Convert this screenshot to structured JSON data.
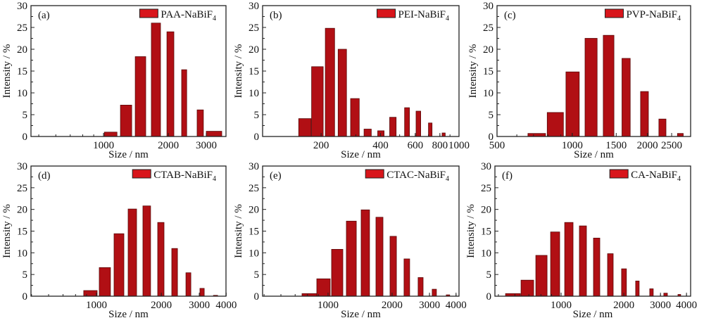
{
  "figure": {
    "bar_color": "#b10f14",
    "legend_color": "#d8151b"
  },
  "chart_data": [
    {
      "type": "bar",
      "panel": "(a)",
      "legend": "PAA-NaBiF",
      "legend_subscript": "4",
      "xlabel": "Size / nm",
      "ylabel": "Intensity / %",
      "xscale": "log",
      "xlim": [
        460,
        3705
      ],
      "ylim": [
        0,
        30
      ],
      "yticks": [
        0,
        5,
        10,
        15,
        20,
        25,
        30
      ],
      "xticks": [
        1000,
        2000,
        3000
      ],
      "legend_position": "top-right",
      "bars": [
        {
          "size": 1078,
          "lo": 1008,
          "hi": 1154,
          "intensity": 1.0
        },
        {
          "size": 1272,
          "lo": 1198,
          "hi": 1351,
          "intensity": 7.2
        },
        {
          "size": 1484,
          "lo": 1403,
          "hi": 1570,
          "intensity": 18.3
        },
        {
          "size": 1750,
          "lo": 1668,
          "hi": 1839,
          "intensity": 26.0
        },
        {
          "size": 2043,
          "lo": 1969,
          "hi": 2122,
          "intensity": 24.0
        },
        {
          "size": 2366,
          "lo": 2305,
          "hi": 2433,
          "intensity": 15.3
        },
        {
          "size": 2812,
          "lo": 2720,
          "hi": 2909,
          "intensity": 6.1
        },
        {
          "size": 3259,
          "lo": 3000,
          "hi": 3541,
          "intensity": 1.2
        }
      ]
    },
    {
      "type": "bar",
      "panel": "(b)",
      "legend": "PEI-NaBiF",
      "legend_subscript": "4",
      "xlabel": "Size / nm",
      "ylabel": "Intensity / %",
      "xscale": "log",
      "xlim": [
        101,
        1000
      ],
      "ylim": [
        0,
        30
      ],
      "yticks": [
        0,
        5,
        10,
        15,
        20,
        25,
        30
      ],
      "xticks": [
        200,
        400,
        600,
        800,
        1000
      ],
      "legend_position": "top-right",
      "bars": [
        {
          "size": 165,
          "lo": 154,
          "hi": 178,
          "intensity": 4.1
        },
        {
          "size": 192,
          "lo": 179,
          "hi": 205,
          "intensity": 16.0
        },
        {
          "size": 221,
          "lo": 210,
          "hi": 234,
          "intensity": 24.8
        },
        {
          "size": 256,
          "lo": 244,
          "hi": 269,
          "intensity": 20.0
        },
        {
          "size": 297,
          "lo": 282,
          "hi": 312,
          "intensity": 8.7
        },
        {
          "size": 345,
          "lo": 330,
          "hi": 359,
          "intensity": 1.7
        },
        {
          "size": 401,
          "lo": 387,
          "hi": 417,
          "intensity": 1.3
        },
        {
          "size": 462,
          "lo": 445,
          "hi": 480,
          "intensity": 4.4
        },
        {
          "size": 545,
          "lo": 530,
          "hi": 561,
          "intensity": 6.6
        },
        {
          "size": 624,
          "lo": 606,
          "hi": 640,
          "intensity": 5.8
        },
        {
          "size": 716,
          "lo": 700,
          "hi": 730,
          "intensity": 3.1
        },
        {
          "size": 840,
          "lo": 821,
          "hi": 851,
          "intensity": 0.8
        }
      ]
    },
    {
      "type": "bar",
      "panel": "(c)",
      "legend": "PVP-NaBiF",
      "legend_subscript": "4",
      "xlabel": "Size / nm",
      "ylabel": "Intensity / %",
      "xscale": "log",
      "xlim": [
        500,
        2978
      ],
      "ylim": [
        0,
        30
      ],
      "yticks": [
        0,
        5,
        10,
        15,
        20,
        25,
        30
      ],
      "xticks": [
        500,
        1000,
        1500,
        2000,
        2500
      ],
      "legend_position": "top-right",
      "bars": [
        {
          "size": 721,
          "lo": 665,
          "hi": 782,
          "intensity": 0.7
        },
        {
          "size": 854,
          "lo": 794,
          "hi": 922,
          "intensity": 5.5
        },
        {
          "size": 1004,
          "lo": 944,
          "hi": 1067,
          "intensity": 14.8
        },
        {
          "size": 1189,
          "lo": 1125,
          "hi": 1258,
          "intensity": 22.5
        },
        {
          "size": 1399,
          "lo": 1331,
          "hi": 1469,
          "intensity": 23.2
        },
        {
          "size": 1646,
          "lo": 1582,
          "hi": 1707,
          "intensity": 17.9
        },
        {
          "size": 1952,
          "lo": 1877,
          "hi": 2017,
          "intensity": 10.3
        },
        {
          "size": 2297,
          "lo": 2222,
          "hi": 2373,
          "intensity": 4.0
        },
        {
          "size": 2704,
          "lo": 2637,
          "hi": 2782,
          "intensity": 0.7
        }
      ]
    },
    {
      "type": "bar",
      "panel": "(d)",
      "legend": "CTAB-NaBiF",
      "legend_subscript": "4",
      "xlabel": "Size / nm",
      "ylabel": "Intensity / %",
      "xscale": "log",
      "xlim": [
        497,
        3990
      ],
      "ylim": [
        0,
        30
      ],
      "yticks": [
        0,
        5,
        10,
        15,
        20,
        25,
        30
      ],
      "xticks": [
        1000,
        2000,
        3000,
        4000
      ],
      "legend_position": "top-right",
      "bars": [
        {
          "size": 938,
          "lo": 873,
          "hi": 1008,
          "intensity": 1.3
        },
        {
          "size": 1094,
          "lo": 1031,
          "hi": 1162,
          "intensity": 6.6
        },
        {
          "size": 1272,
          "lo": 1207,
          "hi": 1341,
          "intensity": 14.4
        },
        {
          "size": 1468,
          "lo": 1403,
          "hi": 1536,
          "intensity": 20.1
        },
        {
          "size": 1713,
          "lo": 1643,
          "hi": 1784,
          "intensity": 20.8
        },
        {
          "size": 1990,
          "lo": 1924,
          "hi": 2059,
          "intensity": 17.0
        },
        {
          "size": 2305,
          "lo": 2237,
          "hi": 2377,
          "intensity": 11.0
        },
        {
          "size": 2670,
          "lo": 2601,
          "hi": 2741,
          "intensity": 5.4
        },
        {
          "size": 3093,
          "lo": 3022,
          "hi": 3163,
          "intensity": 1.8
        },
        {
          "size": 3568,
          "lo": 3490,
          "hi": 3648,
          "intensity": 0.2
        }
      ]
    },
    {
      "type": "bar",
      "panel": "(e)",
      "legend": "CTAC-NaBiF",
      "legend_subscript": "4",
      "xlabel": "Size / nm",
      "ylabel": "Intensity / %",
      "xscale": "log",
      "xlim": [
        492,
        4130
      ],
      "ylim": [
        0,
        30
      ],
      "yticks": [
        0,
        5,
        10,
        15,
        20,
        25,
        30
      ],
      "xticks": [
        1000,
        2000,
        3000,
        4000
      ],
      "legend_position": "top-right",
      "bars": [
        {
          "size": 817,
          "lo": 754,
          "hi": 885,
          "intensity": 0.6
        },
        {
          "size": 952,
          "lo": 885,
          "hi": 1023,
          "intensity": 4.0
        },
        {
          "size": 1104,
          "lo": 1039,
          "hi": 1174,
          "intensity": 10.8
        },
        {
          "size": 1286,
          "lo": 1219,
          "hi": 1357,
          "intensity": 17.3
        },
        {
          "size": 1498,
          "lo": 1431,
          "hi": 1567,
          "intensity": 19.9
        },
        {
          "size": 1744,
          "lo": 1679,
          "hi": 1812,
          "intensity": 18.2
        },
        {
          "size": 2024,
          "lo": 1956,
          "hi": 2096,
          "intensity": 13.8
        },
        {
          "size": 2348,
          "lo": 2277,
          "hi": 2421,
          "intensity": 8.6
        },
        {
          "size": 2725,
          "lo": 2652,
          "hi": 2800,
          "intensity": 4.3
        },
        {
          "size": 3160,
          "lo": 3088,
          "hi": 3233,
          "intensity": 1.6
        },
        {
          "size": 3666,
          "lo": 3598,
          "hi": 3735,
          "intensity": 0.3
        }
      ]
    },
    {
      "type": "bar",
      "panel": "(f)",
      "legend": "CA-NaBiF",
      "legend_subscript": "4",
      "xlabel": "Size / nm",
      "ylabel": "Intensity / %",
      "xscale": "log",
      "xlim": [
        481,
        4187
      ],
      "ylim": [
        0,
        30
      ],
      "yticks": [
        0,
        5,
        10,
        15,
        20,
        25,
        30
      ],
      "xticks": [
        1000,
        2000,
        3000,
        4000
      ],
      "legend_position": "top-right",
      "bars": [
        {
          "size": 587,
          "lo": 541,
          "hi": 637,
          "intensity": 0.6
        },
        {
          "size": 688,
          "lo": 642,
          "hi": 738,
          "intensity": 3.7
        },
        {
          "size": 804,
          "lo": 756,
          "hi": 856,
          "intensity": 9.4
        },
        {
          "size": 936,
          "lo": 890,
          "hi": 984,
          "intensity": 14.8
        },
        {
          "size": 1089,
          "lo": 1040,
          "hi": 1141,
          "intensity": 17.0
        },
        {
          "size": 1273,
          "lo": 1224,
          "hi": 1323,
          "intensity": 16.2
        },
        {
          "size": 1481,
          "lo": 1430,
          "hi": 1534,
          "intensity": 13.4
        },
        {
          "size": 1724,
          "lo": 1671,
          "hi": 1778,
          "intensity": 9.8
        },
        {
          "size": 2007,
          "lo": 1951,
          "hi": 2059,
          "intensity": 6.3
        },
        {
          "size": 2324,
          "lo": 2280,
          "hi": 2370,
          "intensity": 3.5
        },
        {
          "size": 2717,
          "lo": 2664,
          "hi": 2770,
          "intensity": 1.7
        },
        {
          "size": 3178,
          "lo": 3113,
          "hi": 3239,
          "intensity": 0.7
        },
        {
          "size": 3694,
          "lo": 3640,
          "hi": 3753,
          "intensity": 0.4
        }
      ]
    }
  ]
}
